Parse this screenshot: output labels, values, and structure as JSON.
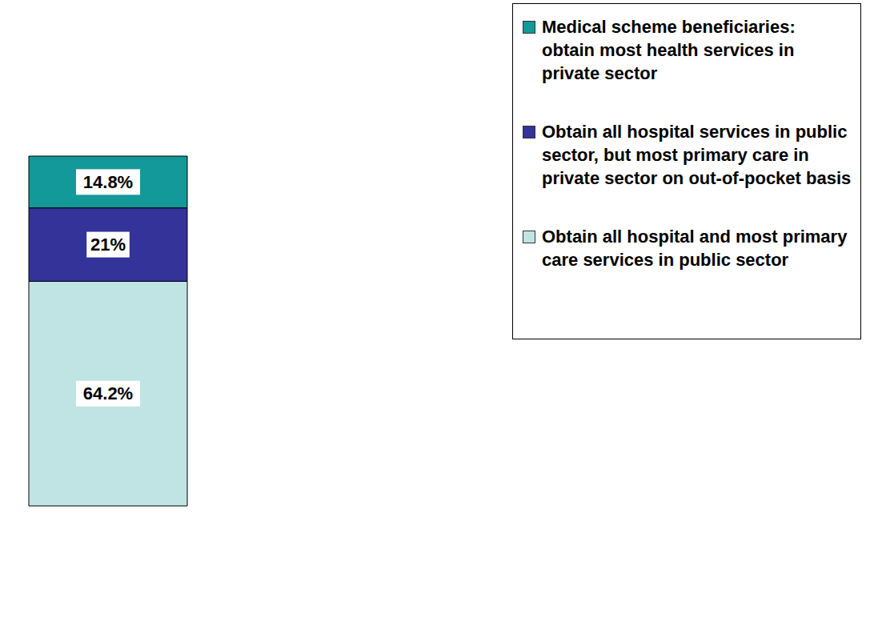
{
  "chart_data": {
    "type": "bar",
    "stacked": true,
    "categories": [
      null
    ],
    "series": [
      {
        "name": "Obtain all hospital and most primary care services in public sector",
        "color": "#c0e4e4",
        "values": [
          64.2
        ],
        "value_labels": [
          "64.2%"
        ]
      },
      {
        "name": "Obtain all hospital services in public sector, but most primary care in private sector on out-of-pocket basis",
        "color": "#333399",
        "values": [
          21
        ],
        "value_labels": [
          "21%"
        ]
      },
      {
        "name": "Medical scheme beneficiaries: obtain most health services in private sector",
        "color": "#139999",
        "values": [
          14.8
        ],
        "value_labels": [
          "14.8%"
        ]
      }
    ],
    "data_labels": true,
    "tick_labels": false,
    "legend": "right"
  }
}
